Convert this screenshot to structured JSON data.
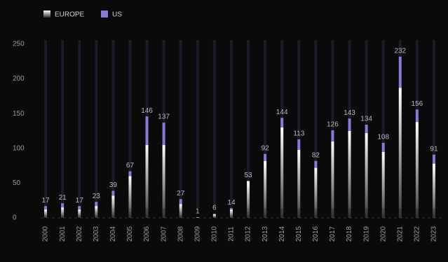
{
  "chart_data": {
    "type": "stacked_bar",
    "categories": [
      "2000",
      "2001",
      "2002",
      "2003",
      "2004",
      "2005",
      "2006",
      "2007",
      "2008",
      "2009",
      "2010",
      "2011",
      "2012",
      "2013",
      "2014",
      "2015",
      "2016",
      "2017",
      "2018",
      "2019",
      "2020",
      "2021",
      "2022",
      "2023"
    ],
    "series": [
      {
        "name": "EUROPE",
        "color": "#ffffff",
        "values": [
          12,
          15,
          12,
          17,
          32,
          60,
          105,
          105,
          20,
          1,
          5,
          12,
          53,
          82,
          130,
          98,
          72,
          110,
          125,
          122,
          95,
          187,
          138,
          78
        ]
      },
      {
        "name": "US",
        "color": "#8a78d8",
        "values": [
          5,
          6,
          5,
          6,
          7,
          7,
          41,
          32,
          7,
          0,
          1,
          2,
          0,
          10,
          14,
          15,
          10,
          16,
          18,
          12,
          13,
          45,
          18,
          13
        ]
      }
    ],
    "totals": [
      17,
      21,
      17,
      23,
      39,
      67,
      146,
      137,
      27,
      1,
      6,
      14,
      53,
      92,
      144,
      113,
      82,
      126,
      143,
      134,
      108,
      232,
      156,
      91
    ],
    "ylim": [
      0,
      250
    ],
    "yticks": [
      0,
      50,
      100,
      150,
      200,
      250
    ]
  }
}
